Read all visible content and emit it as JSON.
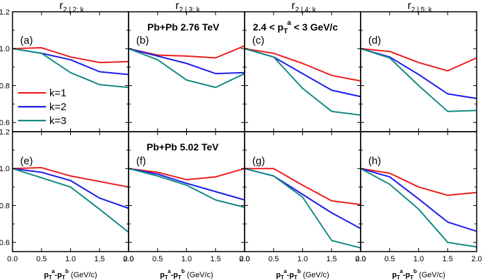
{
  "chart_data": {
    "type": "line",
    "layout": {
      "rows": 2,
      "cols": 4
    },
    "xlim": [
      0.0,
      2.0
    ],
    "ylim": [
      0.55,
      1.2
    ],
    "x_ticks": [
      0.0,
      0.5,
      1.0,
      1.5,
      2.0
    ],
    "x_tick_labels": [
      "0.0",
      "0.5",
      "1.0",
      "1.5",
      "2.0"
    ],
    "y_ticks": [
      0.6,
      0.8,
      1.0,
      1.2
    ],
    "y_tick_labels": [
      "0.6",
      "0.8",
      "1.0",
      "1.2"
    ],
    "column_titles": [
      {
        "main": "r",
        "sub": "2 | 2; k"
      },
      {
        "main": "r",
        "sub": "2 | 3; k"
      },
      {
        "main": "r",
        "sub": "2 | 4; k"
      },
      {
        "main": "r",
        "sub": "2 | 5; k"
      }
    ],
    "xlabel": {
      "p": "p",
      "t": "T",
      "a": "a",
      "dash": "-p",
      "b": "b",
      "unit": " (GeV/c)"
    },
    "annotations": {
      "pbpb_276": "Pb+Pb  2.76 TeV",
      "pbpb_502": "Pb+Pb  5.02 TeV",
      "pt_range": {
        "pre": "2.4 < p",
        "sub": "T",
        "sup": "a",
        "post": " < 3 GeV/c"
      }
    },
    "legend": [
      {
        "label": "k=1",
        "color": "#ee1c1c"
      },
      {
        "label": "k=2",
        "color": "#1c1cee"
      },
      {
        "label": "k=3",
        "color": "#138a82"
      }
    ],
    "x": [
      0.0,
      0.5,
      1.0,
      1.5,
      2.0
    ],
    "panels": [
      {
        "tag": "(a)",
        "series": [
          {
            "values": [
              1.0,
              1.005,
              0.955,
              0.925,
              0.93
            ]
          },
          {
            "values": [
              1.0,
              0.975,
              0.94,
              0.875,
              0.86
            ]
          },
          {
            "values": [
              1.0,
              0.975,
              0.87,
              0.805,
              0.79
            ]
          }
        ]
      },
      {
        "tag": "(b)",
        "series": [
          {
            "values": [
              1.0,
              0.965,
              0.96,
              0.95,
              1.015
            ]
          },
          {
            "values": [
              1.0,
              0.96,
              0.92,
              0.865,
              0.87
            ]
          },
          {
            "values": [
              1.0,
              0.94,
              0.83,
              0.79,
              0.865
            ]
          }
        ]
      },
      {
        "tag": "(c)",
        "series": [
          {
            "values": [
              1.0,
              0.975,
              0.92,
              0.855,
              0.825
            ]
          },
          {
            "values": [
              1.0,
              0.955,
              0.865,
              0.775,
              0.74
            ]
          },
          {
            "values": [
              1.0,
              0.955,
              0.785,
              0.66,
              0.64
            ]
          }
        ]
      },
      {
        "tag": "(d)",
        "series": [
          {
            "values": [
              1.0,
              0.985,
              0.925,
              0.88,
              0.95
            ]
          },
          {
            "values": [
              1.0,
              0.955,
              0.86,
              0.755,
              0.73
            ]
          },
          {
            "values": [
              1.0,
              0.95,
              0.8,
              0.66,
              0.665
            ]
          }
        ]
      },
      {
        "tag": "(e)",
        "series": [
          {
            "values": [
              1.0,
              1.005,
              0.96,
              0.93,
              0.9
            ]
          },
          {
            "values": [
              1.0,
              0.98,
              0.935,
              0.84,
              0.785
            ]
          },
          {
            "values": [
              1.0,
              0.95,
              0.9,
              0.78,
              0.655
            ]
          }
        ]
      },
      {
        "tag": "(f)",
        "series": [
          {
            "values": [
              1.0,
              0.98,
              0.94,
              0.955,
              1.0
            ]
          },
          {
            "values": [
              1.0,
              0.97,
              0.92,
              0.875,
              0.83
            ]
          },
          {
            "values": [
              1.0,
              0.96,
              0.91,
              0.83,
              0.79
            ]
          }
        ]
      },
      {
        "tag": "(g)",
        "series": [
          {
            "values": [
              1.0,
              1.0,
              0.91,
              0.825,
              0.805
            ]
          },
          {
            "values": [
              1.0,
              0.96,
              0.86,
              0.76,
              0.675
            ]
          },
          {
            "values": [
              1.0,
              0.96,
              0.845,
              0.61,
              0.57
            ]
          }
        ]
      },
      {
        "tag": "(h)",
        "series": [
          {
            "values": [
              1.0,
              0.975,
              0.9,
              0.855,
              0.87
            ]
          },
          {
            "values": [
              1.0,
              0.955,
              0.835,
              0.71,
              0.66
            ]
          },
          {
            "values": [
              1.0,
              0.915,
              0.78,
              0.6,
              0.575
            ]
          }
        ]
      }
    ]
  }
}
